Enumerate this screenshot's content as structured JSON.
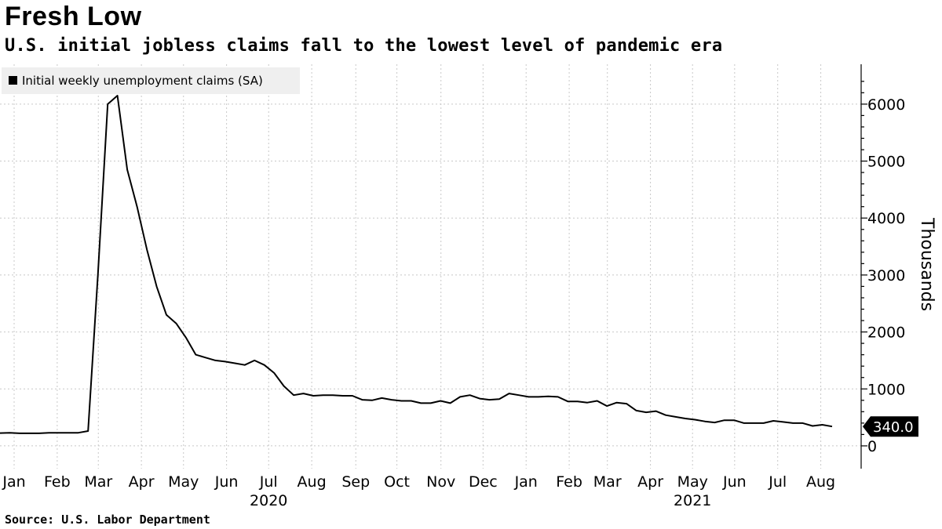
{
  "title": "Fresh Low",
  "subtitle": "U.S. initial jobless claims fall to the lowest level of pandemic era",
  "source": "Source: U.S. Labor Department",
  "chart_data": {
    "type": "line",
    "title": "Fresh Low",
    "subtitle": "U.S. initial jobless claims fall to the lowest level of pandemic era",
    "ylabel": "Thousands",
    "xlabel": "",
    "ylim": [
      -400,
      6700
    ],
    "yticks": [
      0,
      1000,
      2000,
      3000,
      4000,
      5000,
      6000
    ],
    "y_tick_labels": [
      "0",
      "1000",
      "2000",
      "3000",
      "4000",
      "5000",
      "6000"
    ],
    "x_tick_labels": [
      "Jan",
      "Feb",
      "Mar",
      "Apr",
      "May",
      "Jun",
      "Jul",
      "Aug",
      "Sep",
      "Oct",
      "Nov",
      "Dec",
      "Jan",
      "Feb",
      "Mar",
      "Apr",
      "May",
      "Jun",
      "Jul",
      "Aug"
    ],
    "x_tick_weeks": [
      0,
      4.4,
      8.6,
      13,
      17.3,
      21.7,
      26,
      30.4,
      34.9,
      39.1,
      43.6,
      47.9,
      52.3,
      56.7,
      60.6,
      65,
      69.3,
      73.6,
      78,
      82.4
    ],
    "year_labels": [
      {
        "label": "2020",
        "week": 26
      },
      {
        "label": "2021",
        "week": 69.3
      }
    ],
    "legend": [
      "Initial weekly unemployment claims (SA)"
    ],
    "legend_position": "top-left",
    "grid": true,
    "last_value_label": "340.0",
    "series": [
      {
        "name": "Initial weekly unemployment claims (SA)",
        "color": "#000000",
        "values": [
          225,
          230,
          220,
          220,
          220,
          230,
          230,
          230,
          230,
          260,
          3000,
          6000,
          6150,
          4850,
          4200,
          3450,
          2800,
          2300,
          2150,
          1900,
          1600,
          1550,
          1500,
          1480,
          1450,
          1420,
          1500,
          1420,
          1280,
          1050,
          890,
          920,
          880,
          890,
          890,
          880,
          880,
          810,
          800,
          840,
          810,
          790,
          790,
          750,
          750,
          790,
          750,
          860,
          890,
          830,
          810,
          820,
          920,
          890,
          860,
          860,
          870,
          860,
          780,
          780,
          760,
          790,
          700,
          760,
          740,
          620,
          590,
          610,
          540,
          510,
          480,
          460,
          430,
          410,
          450,
          450,
          400,
          400,
          400,
          440,
          420,
          400,
          400,
          350,
          370,
          340
        ]
      }
    ]
  }
}
